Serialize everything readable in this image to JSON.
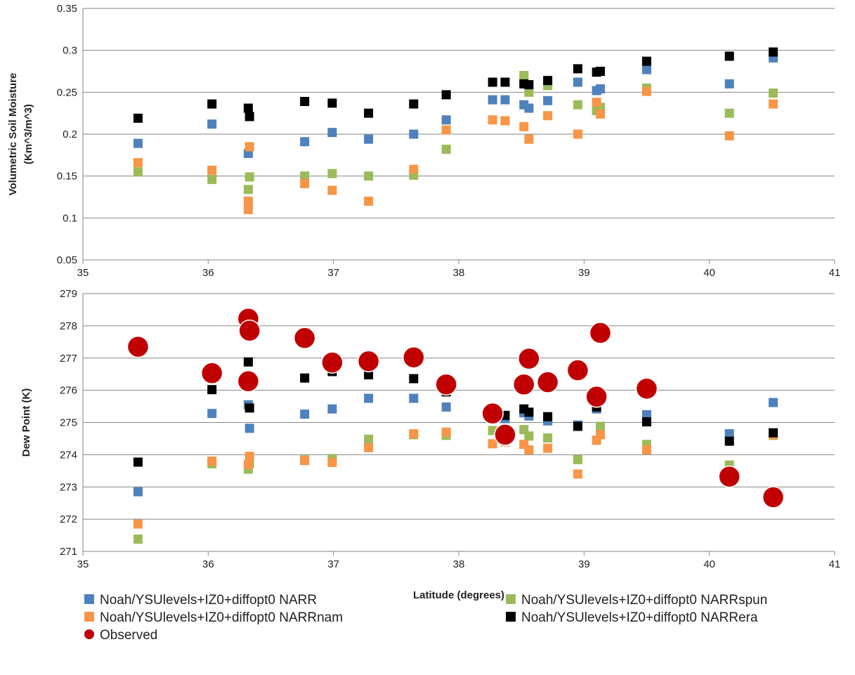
{
  "chart_data": [
    {
      "type": "scatter",
      "xlabel": "",
      "ylabel_line1": "Volumetric  Soil Moisture",
      "ylabel_line2": "(Km^3/m^3)",
      "xlim": [
        35,
        41
      ],
      "ylim": [
        0.05,
        0.35
      ],
      "x_ticks": [
        35,
        36,
        37,
        38,
        39,
        40,
        41
      ],
      "x_tick_labels": [
        "35",
        "36",
        "37",
        "38",
        "39",
        "40",
        "41"
      ],
      "y_ticks": [
        0.05,
        0.1,
        0.15,
        0.2,
        0.25,
        0.3,
        0.35
      ],
      "y_tick_labels": [
        "0.05",
        "0.1",
        "0.15",
        "0.2",
        "0.25",
        "0.3",
        "0.35"
      ],
      "grid": true,
      "series": [
        {
          "name": "Noah/YSUlevels+IZ0+diffopt0 NARR",
          "color": "#4F81BD",
          "marker": "square",
          "x": [
            35.44,
            36.03,
            36.32,
            36.77,
            36.99,
            37.28,
            37.64,
            37.9,
            38.27,
            38.37,
            38.52,
            38.56,
            38.71,
            38.95,
            39.1,
            39.13,
            39.5,
            40.16,
            40.51
          ],
          "y": [
            0.189,
            0.212,
            0.177,
            0.191,
            0.202,
            0.194,
            0.2,
            0.217,
            0.241,
            0.241,
            0.235,
            0.231,
            0.24,
            0.262,
            0.252,
            0.254,
            0.277,
            0.26,
            0.291
          ]
        },
        {
          "name": "Noah/YSUlevels+IZ0+diffopt0 NARRspun",
          "color": "#9BBB59",
          "marker": "square",
          "x": [
            35.44,
            36.03,
            36.32,
            36.33,
            36.77,
            36.99,
            37.28,
            37.64,
            37.9,
            38.52,
            38.56,
            38.71,
            38.95,
            39.1,
            39.13,
            39.5,
            40.16,
            40.51
          ],
          "y": [
            0.155,
            0.146,
            0.134,
            0.149,
            0.15,
            0.153,
            0.15,
            0.151,
            0.182,
            0.27,
            0.25,
            0.258,
            0.235,
            0.228,
            0.232,
            0.255,
            0.225,
            0.249
          ]
        },
        {
          "name": "Noah/YSUlevels+IZ0+diffopt0 NARRnam",
          "color": "#F79646",
          "marker": "square",
          "x": [
            35.44,
            36.03,
            36.32,
            36.32,
            36.33,
            36.77,
            36.99,
            37.28,
            37.64,
            37.9,
            38.27,
            38.37,
            38.52,
            38.56,
            38.71,
            38.95,
            39.1,
            39.13,
            39.5,
            40.16,
            40.51
          ],
          "y": [
            0.166,
            0.157,
            0.11,
            0.12,
            0.185,
            0.141,
            0.133,
            0.12,
            0.158,
            0.205,
            0.217,
            0.216,
            0.209,
            0.194,
            0.222,
            0.2,
            0.238,
            0.224,
            0.251,
            0.198,
            0.236
          ]
        },
        {
          "name": "Noah/YSUlevels+IZ0+diffopt0 NARRera",
          "color": "#000000",
          "marker": "square",
          "x": [
            35.44,
            36.03,
            36.32,
            36.33,
            36.77,
            36.99,
            37.28,
            37.64,
            37.9,
            38.27,
            38.37,
            38.52,
            38.56,
            38.71,
            38.95,
            39.1,
            39.13,
            39.5,
            40.16,
            40.51
          ],
          "y": [
            0.219,
            0.236,
            0.231,
            0.221,
            0.239,
            0.237,
            0.225,
            0.236,
            0.247,
            0.262,
            0.262,
            0.26,
            0.259,
            0.264,
            0.278,
            0.274,
            0.275,
            0.287,
            0.293,
            0.298
          ]
        }
      ]
    },
    {
      "type": "scatter",
      "xlabel": "Latitude (degrees)",
      "ylabel": "Dew Point (K)",
      "xlim": [
        35,
        41
      ],
      "ylim": [
        271,
        279
      ],
      "x_ticks": [
        35,
        36,
        37,
        38,
        39,
        40,
        41
      ],
      "x_tick_labels": [
        "35",
        "36",
        "37",
        "38",
        "39",
        "40",
        "41"
      ],
      "y_ticks": [
        271,
        272,
        273,
        274,
        275,
        276,
        277,
        278,
        279
      ],
      "y_tick_labels": [
        "271",
        "272",
        "273",
        "274",
        "275",
        "276",
        "277",
        "278",
        "279"
      ],
      "grid": true,
      "series": [
        {
          "name": "Noah/YSUlevels+IZ0+diffopt0 NARR",
          "color": "#4F81BD",
          "marker": "square",
          "x": [
            35.44,
            36.03,
            36.32,
            36.33,
            36.77,
            36.99,
            37.28,
            37.64,
            37.9,
            38.37,
            38.52,
            38.56,
            38.71,
            38.95,
            39.1,
            39.5,
            40.16,
            40.51
          ],
          "y": [
            272.85,
            275.28,
            275.55,
            274.82,
            275.26,
            275.42,
            275.75,
            275.75,
            275.48,
            275.12,
            275.3,
            275.2,
            275.05,
            274.92,
            275.42,
            275.24,
            274.65,
            275.62
          ]
        },
        {
          "name": "Noah/YSUlevels+IZ0+diffopt0 NARRspun",
          "color": "#9BBB59",
          "marker": "square",
          "x": [
            35.44,
            36.03,
            36.32,
            36.33,
            36.77,
            36.99,
            37.28,
            37.64,
            37.9,
            38.27,
            38.52,
            38.56,
            38.71,
            38.95,
            39.13,
            39.5,
            40.16,
            40.51
          ],
          "y": [
            271.38,
            273.72,
            273.55,
            273.72,
            273.84,
            273.88,
            274.48,
            274.62,
            274.6,
            274.75,
            274.78,
            274.58,
            274.52,
            273.85,
            274.88,
            274.32,
            273.68,
            274.6
          ]
        },
        {
          "name": "Noah/YSUlevels+IZ0+diffopt0 NARRnam",
          "color": "#F79646",
          "marker": "square",
          "x": [
            35.44,
            36.03,
            36.32,
            36.33,
            36.77,
            36.99,
            37.28,
            37.64,
            37.9,
            38.27,
            38.37,
            38.52,
            38.56,
            38.71,
            38.95,
            39.1,
            39.13,
            39.5,
            40.51
          ],
          "y": [
            271.85,
            273.8,
            273.7,
            273.95,
            273.82,
            273.76,
            274.22,
            274.65,
            274.7,
            274.34,
            274.4,
            274.32,
            274.15,
            274.2,
            273.4,
            274.45,
            274.62,
            274.15,
            274.62
          ]
        },
        {
          "name": "Noah/YSUlevels+IZ0+diffopt0 NARRera",
          "color": "#000000",
          "marker": "square",
          "x": [
            35.44,
            36.03,
            36.32,
            36.33,
            36.77,
            36.99,
            37.28,
            37.64,
            37.9,
            38.37,
            38.52,
            38.56,
            38.71,
            38.95,
            39.1,
            39.5,
            40.16,
            40.51
          ],
          "y": [
            273.77,
            276.02,
            276.88,
            275.45,
            276.38,
            276.58,
            276.48,
            276.36,
            275.95,
            275.22,
            275.42,
            275.32,
            275.18,
            274.88,
            275.48,
            275.02,
            274.42,
            274.68
          ]
        },
        {
          "name": "Observed",
          "color": "#C00000",
          "marker": "circle",
          "x": [
            35.44,
            36.03,
            36.32,
            36.32,
            36.33,
            36.77,
            36.99,
            37.28,
            37.64,
            37.9,
            38.27,
            38.37,
            38.52,
            38.56,
            38.71,
            38.95,
            39.1,
            39.13,
            39.5,
            40.16,
            40.51
          ],
          "y": [
            277.35,
            276.53,
            278.22,
            276.28,
            277.85,
            277.62,
            276.86,
            276.9,
            277.02,
            276.18,
            275.28,
            274.62,
            276.18,
            276.98,
            276.25,
            276.62,
            275.8,
            277.78,
            276.05,
            273.32,
            272.68
          ]
        }
      ]
    }
  ],
  "legend": [
    {
      "label": "Noah/YSUlevels+IZ0+diffopt0 NARR",
      "color": "#4F81BD",
      "marker": "square"
    },
    {
      "label": "Noah/YSUlevels+IZ0+diffopt0 NARRspun",
      "color": "#9BBB59",
      "marker": "square"
    },
    {
      "label": "Noah/YSUlevels+IZ0+diffopt0 NARRnam",
      "color": "#F79646",
      "marker": "square"
    },
    {
      "label": "Noah/YSUlevels+IZ0+diffopt0 NARRera",
      "color": "#000000",
      "marker": "square"
    },
    {
      "label": "Observed",
      "color": "#C00000",
      "marker": "circle"
    }
  ]
}
